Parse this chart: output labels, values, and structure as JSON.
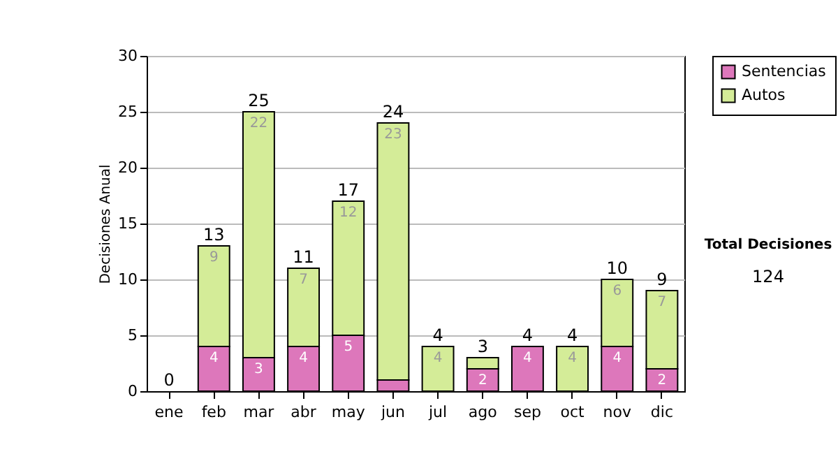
{
  "chart_data": {
    "type": "bar",
    "stacked": true,
    "ylabel": "Decisiones Anual",
    "categories": [
      "ene",
      "feb",
      "mar",
      "abr",
      "may",
      "jun",
      "jul",
      "ago",
      "sep",
      "oct",
      "nov",
      "dic"
    ],
    "series": [
      {
        "name": "Sentencias",
        "color": "#dd77bb",
        "values": [
          0,
          4,
          3,
          4,
          5,
          1,
          0,
          2,
          4,
          0,
          4,
          2
        ],
        "value_labels": [
          null,
          "4",
          "3",
          "4",
          "5",
          null,
          null,
          "2",
          "4",
          null,
          "4",
          "2"
        ]
      },
      {
        "name": "Autos",
        "color": "#d4ec98",
        "values": [
          0,
          9,
          22,
          7,
          12,
          23,
          4,
          1,
          0,
          4,
          6,
          7
        ],
        "value_labels": [
          null,
          "9",
          "22",
          "7",
          "12",
          "23",
          "4",
          null,
          null,
          "4",
          "6",
          "7"
        ]
      }
    ],
    "totals": [
      "0",
      "13",
      "25",
      "11",
      "17",
      "24",
      "4",
      "3",
      "4",
      "4",
      "10",
      "9"
    ],
    "ylim": [
      0,
      30
    ],
    "yticks": [
      0,
      5,
      10,
      15,
      20,
      25,
      30
    ],
    "grid": "y",
    "legend": "right",
    "annotations": [
      "Total Decisiones",
      "124"
    ]
  }
}
